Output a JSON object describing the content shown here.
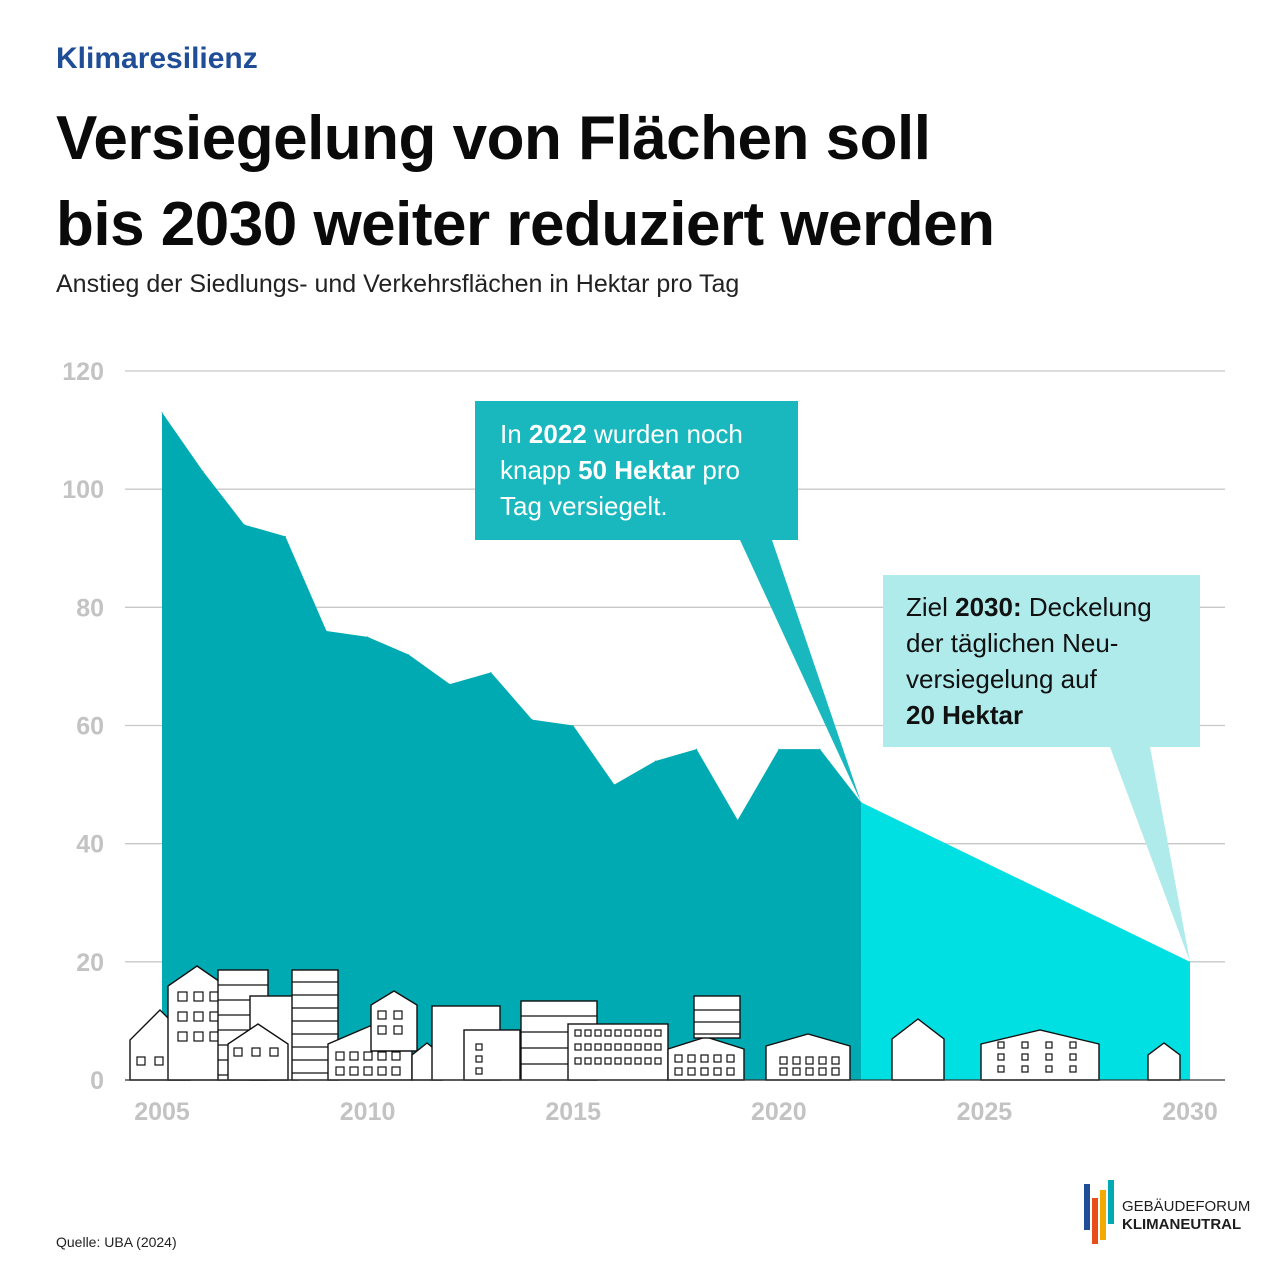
{
  "header": {
    "kicker": "Klimaresilienz",
    "title_line1": "Versiegelung von Flächen soll",
    "title_line2": "bis 2030 weiter reduziert werden",
    "subtitle": "Anstieg der Siedlungs- und Verkehrsflächen in Hektar pro Tag"
  },
  "callouts": {
    "c1": {
      "a": "In ",
      "b": "2022",
      "c": " wurden noch",
      "d": "knapp ",
      "e": "50 Hektar",
      "f": " pro",
      "g": "Tag versiegelt."
    },
    "c2": {
      "a": "Ziel ",
      "b": "2030:",
      "c": " Deckelung",
      "d": "der täglichen Neu-",
      "e": "versiegelung auf",
      "f": "20 Hektar"
    }
  },
  "source": "Quelle: UBA (2024)",
  "logo": {
    "line1": "GEBÄUDEFORUM",
    "line2": "KLIMANEUTRAL"
  },
  "colors": {
    "actual_fill": "#00aab3",
    "target_fill": "#00dfe2",
    "callout1_fill": "#19b8bf",
    "callout2_fill": "#b0ebec",
    "kicker": "#1f4e96",
    "ticks": "#c3c3c3"
  },
  "chart_data": {
    "type": "area",
    "title": "Versiegelung von Flächen soll bis 2030 weiter reduziert werden",
    "subtitle": "Anstieg der Siedlungs- und Verkehrsflächen in Hektar pro Tag",
    "xlabel": "",
    "ylabel": "",
    "xlim": [
      2005,
      2030
    ],
    "ylim": [
      0,
      120
    ],
    "yticks": [
      0,
      20,
      40,
      60,
      80,
      100,
      120
    ],
    "xticks": [
      2005,
      2010,
      2015,
      2020,
      2025,
      2030
    ],
    "grid": true,
    "series": [
      {
        "x": [
          2005,
          2006,
          2007,
          2008,
          2009,
          2010,
          2011,
          2012,
          2013,
          2014,
          2015,
          2016,
          2017,
          2018,
          2019,
          2020,
          2021,
          2022
        ],
        "values": [
          113,
          103,
          94,
          92,
          76,
          75,
          72,
          67,
          69,
          61,
          60,
          50,
          54,
          56,
          44,
          56,
          56,
          47
        ]
      },
      {
        "x": [
          2022,
          2030
        ],
        "values": [
          47,
          20
        ]
      }
    ],
    "annotations": [
      "In 2022 wurden noch knapp 50 Hektar pro Tag versiegelt.",
      "Ziel 2030: Deckelung der täglichen Neuversiegelung auf 20 Hektar"
    ]
  }
}
